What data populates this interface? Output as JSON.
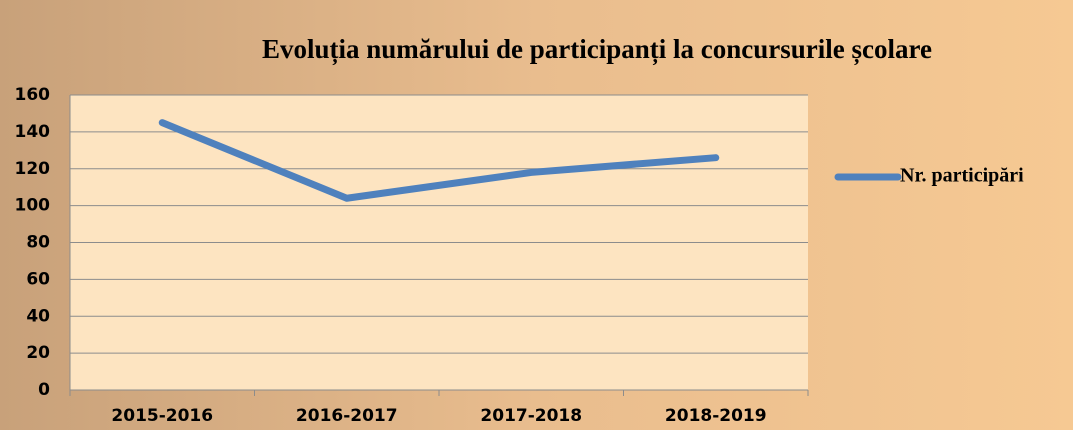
{
  "chart_data": {
    "type": "line",
    "title": "Evoluția numărului de participanți la concursurile școlare",
    "categories": [
      "2015-2016",
      "2016-2017",
      "2017-2018",
      "2018-2019"
    ],
    "series": [
      {
        "name": "Nr. participări",
        "color": "#4f81bd",
        "values": [
          145,
          104,
          118,
          126
        ]
      }
    ],
    "ylim": [
      0,
      160
    ],
    "yticks": [
      0,
      20,
      40,
      60,
      80,
      100,
      120,
      140,
      160
    ],
    "grid": true,
    "legend": "right"
  }
}
